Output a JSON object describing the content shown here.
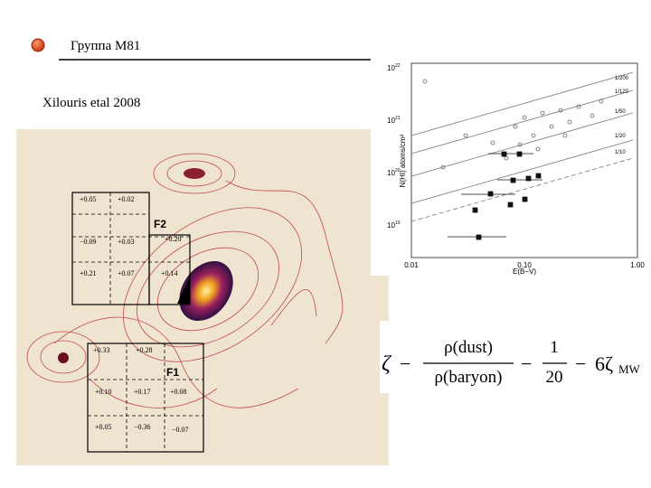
{
  "header": {
    "title": "Группа M81"
  },
  "reference": "Xilouris etal 2008",
  "image": {
    "f2": {
      "label": "F2",
      "values": [
        "+0.05",
        "+0.02",
        "−0.09",
        "+0.03",
        "+0.20",
        "+0.21",
        "+0.07",
        "+0.14"
      ]
    },
    "f1": {
      "label": "F1",
      "values": [
        "+0.33",
        "+0.28",
        "+0.10",
        "+0.17",
        "+0.08",
        "+0.05",
        "−0.36",
        "−0.07"
      ]
    }
  },
  "chart": {
    "y_label": "N(HI) atoms/cm²",
    "x_label": "E(B−V)",
    "y_ticks": [
      {
        "base": "10",
        "exp": "22"
      },
      {
        "base": "10",
        "exp": "21"
      },
      {
        "base": "10",
        "exp": "20"
      },
      {
        "base": "10",
        "exp": "19"
      }
    ],
    "x_ticks": [
      "0.01",
      "0.10",
      "1.00"
    ],
    "line_labels": [
      "1/200",
      "1/120",
      "1/50",
      "1/20",
      "1/10"
    ]
  },
  "formula": {
    "lhs": "ζ",
    "op": "−",
    "num1": "ρ(dust)",
    "den1": "ρ(baryon)",
    "minus1": "−",
    "num2": "1",
    "den2": "20",
    "minus2": "−",
    "term": "6ζ",
    "sub": "MW"
  }
}
